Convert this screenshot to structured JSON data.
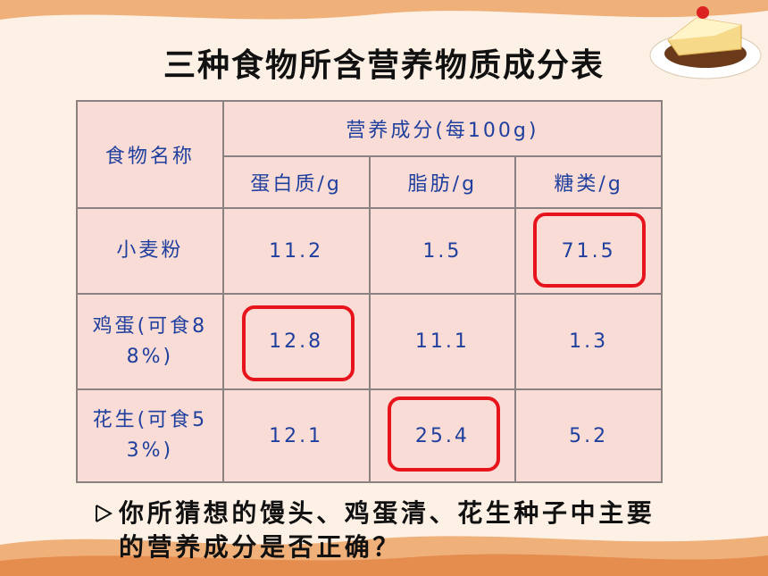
{
  "title": "三种食物所含营养物质成分表",
  "table": {
    "header": {
      "food": "食物名称",
      "group": "营养成分(每100g)",
      "columns": [
        "蛋白质/g",
        "脂肪/g",
        "糖类/g"
      ]
    },
    "rows": [
      [
        "小麦粉",
        "11.2",
        "1.5",
        "71.5"
      ],
      [
        "鸡蛋(可食88%)",
        "12.8",
        "11.1",
        "1.3"
      ],
      [
        "花生(可食53%)",
        "12.1",
        "25.4",
        "5.2"
      ]
    ]
  },
  "question": "你所猜想的馒头、鸡蛋清、花生种子中主要的营养成分是否正确？"
}
